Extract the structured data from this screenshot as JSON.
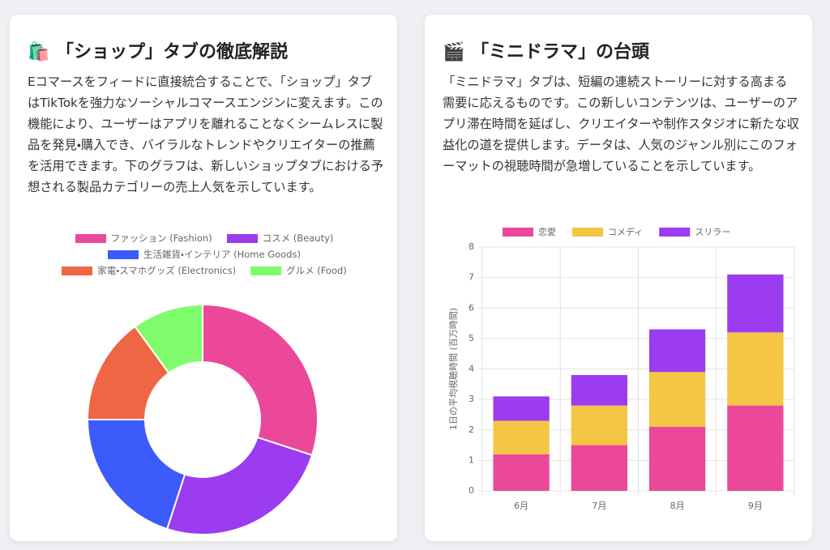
{
  "cards": [
    {
      "title": "🛍️ 「ショップ」タブの徹底解説",
      "text": "Eコマースをフィードに直接統合することで、「ショップ」タブはTikTokを強力なソーシャルコマースエンジンに変えます。この機能により、ユーザーはアプリを離れることなくシームレスに製品を発見・購入でき、バイラルなトレンドやクリエイターの推薦を活用できます。下のグラフは、新しいショップタブにおける予想される製品カテゴリーの売上人気を示しています。"
    },
    {
      "title": "🎬 「ミニドラマ」の台頭",
      "text": "「ミニドラマ」タブは、短編の連続ストーリーに対する高まる需要に応えるものです。この新しいコンテンツは、ユーザーのアプリ滞在時間を延ばし、クリエイターや制作スタジオに新たな収益化の道を提供します。データは、人気のジャンル別にこのフォーマットの視聴時間が急増していることを示しています。"
    }
  ],
  "chart_data": [
    {
      "type": "donut",
      "categories": [
        "ファッション (Fashion)",
        "コスメ (Beauty)",
        "生活雑貨・インテリア (Home Goods)",
        "家電・スマホグッズ (Electronics)",
        "グルメ (Food)"
      ],
      "values": [
        30,
        25,
        20,
        15,
        10
      ],
      "colors": [
        "#ec4899",
        "#9b3cf0",
        "#3b5bfb",
        "#ef6644",
        "#7ffc6c"
      ]
    },
    {
      "type": "stacked-bar",
      "categories": [
        "6月",
        "7月",
        "8月",
        "9月"
      ],
      "ylabel": "1日の平均視聴時間 (百万時間)",
      "series": [
        {
          "name": "恋愛",
          "color": "#ec4899",
          "values": [
            1.2,
            1.5,
            2.1,
            2.8
          ]
        },
        {
          "name": "コメディ",
          "color": "#f5c544",
          "values": [
            1.1,
            1.3,
            1.8,
            2.4
          ]
        },
        {
          "name": "スリラー",
          "color": "#9b3cf0",
          "values": [
            0.8,
            1.0,
            1.4,
            1.9
          ]
        }
      ],
      "ylim": [
        0,
        8
      ],
      "yticks": [
        0,
        1,
        2,
        3,
        4,
        5,
        6,
        7,
        8
      ],
      "grid": true
    }
  ]
}
